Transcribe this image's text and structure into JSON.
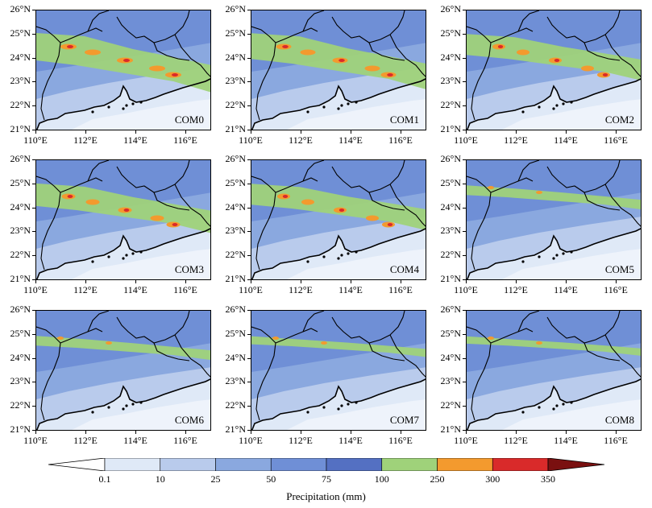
{
  "panels": [
    {
      "label": "COM0",
      "intensity": 1.0
    },
    {
      "label": "COM1",
      "intensity": 0.95
    },
    {
      "label": "COM2",
      "intensity": 0.8
    },
    {
      "label": "COM3",
      "intensity": 0.85
    },
    {
      "label": "COM4",
      "intensity": 0.8
    },
    {
      "label": "COM5",
      "intensity": 0.45
    },
    {
      "label": "COM6",
      "intensity": 0.45
    },
    {
      "label": "COM7",
      "intensity": 0.4
    },
    {
      "label": "COM8",
      "intensity": 0.38
    }
  ],
  "lat_ticks": [
    "26°N",
    "25°N",
    "24°N",
    "23°N",
    "22°N",
    "21°N"
  ],
  "lon_ticks": [
    "110°E",
    "112°E",
    "114°E",
    "116°E"
  ],
  "colorbar": {
    "labels": [
      "0.1",
      "10",
      "25",
      "50",
      "75",
      "100",
      "250",
      "300",
      "350"
    ],
    "colors": [
      "#ffffff",
      "#dfe9f7",
      "#b9cbec",
      "#8aa8df",
      "#6f8fd6",
      "#5470c2",
      "#9fd27a",
      "#f39a2e",
      "#d92a2a",
      "#7a1010"
    ],
    "title": "Precipitation (mm)"
  }
}
